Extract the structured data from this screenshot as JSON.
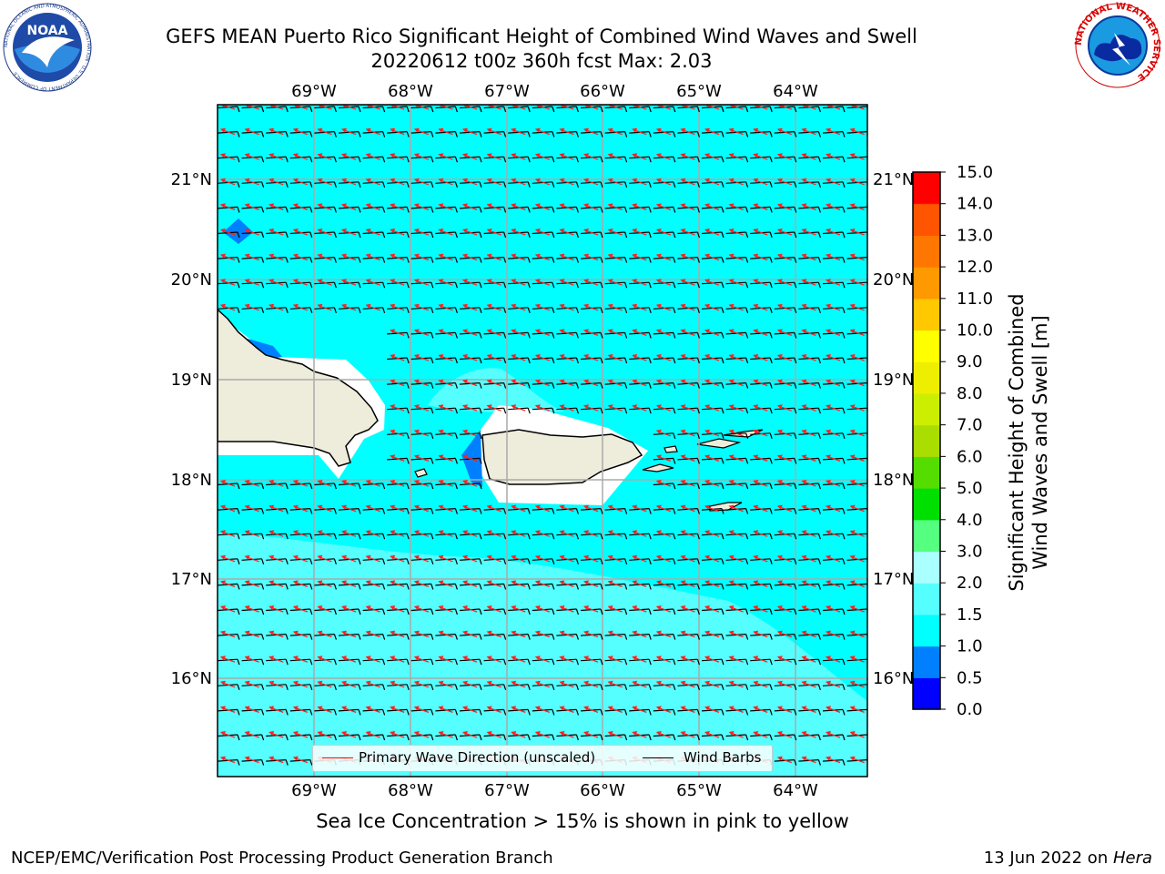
{
  "header": {
    "title_line1": "GEFS MEAN Puerto Rico Significant Height of Combined Wind Waves and Swell",
    "title_line2": "20220612 t00z 360h fcst   Max: 2.03"
  },
  "logos": {
    "noaa": {
      "text": "NOAA",
      "ring_text": "NATIONAL OCEANIC AND ATMOSPHERIC ADMINISTRATION · U.S. DEPARTMENT OF COMMERCE"
    },
    "nws": {
      "ring_text": "NATIONAL WEATHER SERVICE"
    }
  },
  "map": {
    "lon_labels": [
      "69°W",
      "68°W",
      "67°W",
      "66°W",
      "65°W",
      "64°W"
    ],
    "lat_labels": [
      "21°N",
      "20°N",
      "19°N",
      "18°N",
      "17°N",
      "16°N"
    ],
    "ocean_color": "#00ffff",
    "land_color": "#eeecdb",
    "barb_color": "#000000",
    "wave_dir_color": "#ff0000"
  },
  "legend": {
    "wave_label": "Primary Wave Direction (unscaled)",
    "barb_label": "Wind Barbs"
  },
  "colorbar": {
    "title_line1": "Significant Height of Combined",
    "title_line2": "Wind Waves and Swell [m]",
    "ticks": [
      "0.0",
      "0.5",
      "1.0",
      "1.5",
      "2.0",
      "3.0",
      "4.0",
      "5.0",
      "6.0",
      "7.0",
      "8.0",
      "9.0",
      "10.0",
      "11.0",
      "12.0",
      "13.0",
      "14.0",
      "15.0"
    ],
    "colors": [
      "#0000ff",
      "#0080ff",
      "#00ffff",
      "#55ffff",
      "#aaffff",
      "#55ff80",
      "#00e000",
      "#55dd00",
      "#aadd00",
      "#ccee00",
      "#eeee00",
      "#ffff00",
      "#ffc800",
      "#ff9900",
      "#ff7700",
      "#ff5500",
      "#ff2a00",
      "#ff0000"
    ]
  },
  "footer": {
    "subtitle": "Sea Ice Concentration > 15% is shown in pink to yellow",
    "left": "NCEP/EMC/Verification Post Processing Product Generation Branch",
    "right_prefix": "13 Jun 2022 on ",
    "right_host": "Hera"
  }
}
